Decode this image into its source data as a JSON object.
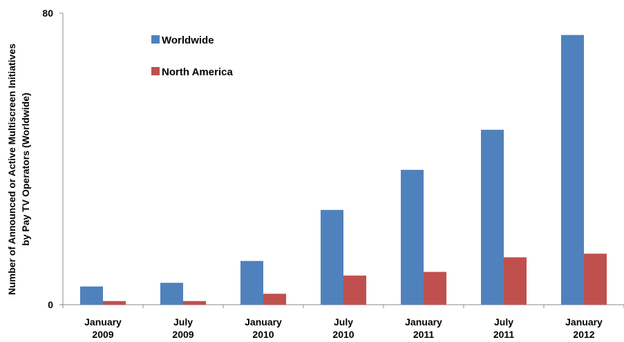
{
  "chart_data": {
    "type": "bar",
    "categories": [
      [
        "January",
        "2009"
      ],
      [
        "July",
        "2009"
      ],
      [
        "January",
        "2010"
      ],
      [
        "July",
        "2010"
      ],
      [
        "January",
        "2011"
      ],
      [
        "July",
        "2011"
      ],
      [
        "January",
        "2012"
      ]
    ],
    "series": [
      {
        "name": "Worldwide",
        "color": "#4f81bd",
        "values": [
          5,
          6,
          12,
          26,
          37,
          48,
          74
        ]
      },
      {
        "name": "North America",
        "color": "#c0504d",
        "values": [
          1,
          1,
          3,
          8,
          9,
          13,
          14
        ]
      }
    ],
    "ylabel_lines": [
      "Number of Announced or Active Multiscreen Initiatives",
      "by Pay TV Operators (Worldwide)"
    ],
    "ylim": [
      0,
      80
    ],
    "yticks": [
      "0",
      "80"
    ],
    "grid": false,
    "legend_position": "top-left inside plot"
  }
}
